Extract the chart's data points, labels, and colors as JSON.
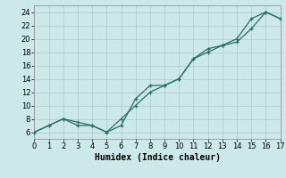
{
  "xlabel": "Humidex (Indice chaleur)",
  "bg_color": "#cce8e8",
  "grid_color": "#b0c8c8",
  "line_color": "#2a6e65",
  "x_data": [
    0,
    1,
    2,
    3,
    4,
    5,
    6,
    7,
    8,
    9,
    10,
    11,
    12,
    13,
    14,
    15,
    16,
    17
  ],
  "y_curve": [
    6,
    7,
    8,
    7,
    7,
    6,
    7,
    11,
    13,
    13,
    14,
    17,
    18.5,
    19,
    19.5,
    21.5,
    24,
    23
  ],
  "y_line": [
    6,
    7,
    8,
    7.5,
    7,
    6,
    8,
    10,
    12,
    13,
    14,
    17,
    18,
    19,
    20,
    23,
    24,
    23
  ],
  "xlim": [
    0,
    17
  ],
  "ylim": [
    5,
    25
  ],
  "xticks": [
    0,
    1,
    2,
    3,
    4,
    5,
    6,
    7,
    8,
    9,
    10,
    11,
    12,
    13,
    14,
    15,
    16,
    17
  ],
  "yticks": [
    6,
    8,
    10,
    12,
    14,
    16,
    18,
    20,
    22,
    24
  ],
  "xlabel_fontsize": 7,
  "tick_fontsize": 6
}
